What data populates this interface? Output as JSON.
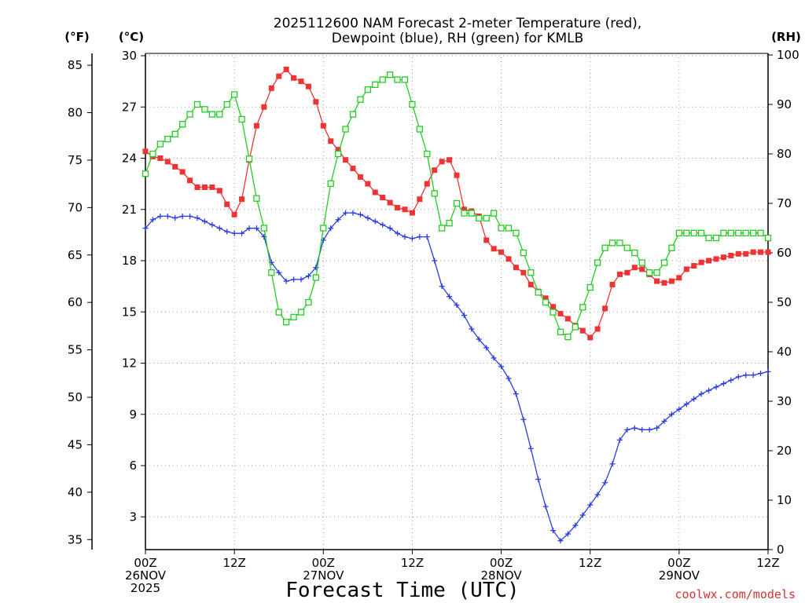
{
  "colors": {
    "temperature": "#ee3333",
    "dewpoint": "#2a3de0",
    "rh": "#22cc22",
    "grid": "#9a9a9a",
    "watermark": "#d63030"
  },
  "header": {
    "title_line1": "2025112600 NAM Forecast 2-meter Temperature (red),",
    "title_line2": "Dewpoint (blue), RH (green) for KMLB"
  },
  "axes": {
    "fahrenheit_unit": "(°F)",
    "celsius_unit": "(°C)",
    "rh_unit": "(RH)",
    "xlabel": "Forecast Time (UTC)"
  },
  "watermark": "coolwx.com/models",
  "chart_data": {
    "type": "line",
    "title": "2025112600 NAM Forecast 2-meter Temperature (red), Dewpoint (blue), RH (green) for KMLB",
    "xlabel": "Forecast Time (UTC)",
    "ylabel_left": "(°C)",
    "ylabel_far_left": "(°F)",
    "ylabel_right": "(RH)",
    "x_unit": "forecast hour",
    "xlim": [
      0,
      84
    ],
    "ylim_celsius": [
      1.5,
      30.5
    ],
    "ylim_rh": [
      0,
      100
    ],
    "x_ticks": [
      {
        "hour": 0,
        "lines": [
          "00Z",
          "26NOV",
          "2025"
        ]
      },
      {
        "hour": 12,
        "lines": [
          "12Z"
        ]
      },
      {
        "hour": 24,
        "lines": [
          "00Z",
          "27NOV"
        ]
      },
      {
        "hour": 36,
        "lines": [
          "12Z"
        ]
      },
      {
        "hour": 48,
        "lines": [
          "00Z",
          "28NOV"
        ]
      },
      {
        "hour": 60,
        "lines": [
          "12Z"
        ]
      },
      {
        "hour": 72,
        "lines": [
          "00Z",
          "29NOV"
        ]
      },
      {
        "hour": 84,
        "lines": [
          "12Z"
        ]
      }
    ],
    "celsius_ticks": [
      "3",
      "6",
      "9",
      "12",
      "15",
      "18",
      "21",
      "24",
      "27",
      "30"
    ],
    "fahrenheit_ticks": [
      "35",
      "40",
      "45",
      "50",
      "55",
      "60",
      "65",
      "70",
      "75",
      "80",
      "85"
    ],
    "rh_ticks": [
      "0",
      "10",
      "20",
      "30",
      "40",
      "50",
      "60",
      "70",
      "80",
      "90",
      "100"
    ],
    "series": [
      {
        "name": "Temperature",
        "unit": "°C",
        "color": "temperature",
        "marker": "filled-square",
        "hours": [
          0,
          1,
          2,
          3,
          4,
          5,
          6,
          7,
          8,
          9,
          10,
          11,
          12,
          13,
          14,
          15,
          16,
          17,
          18,
          19,
          20,
          21,
          22,
          23,
          24,
          25,
          26,
          27,
          28,
          29,
          30,
          31,
          32,
          33,
          34,
          35,
          36,
          37,
          38,
          39,
          40,
          41,
          42,
          43,
          44,
          45,
          46,
          47,
          48,
          49,
          50,
          51,
          52,
          53,
          54,
          55,
          56,
          57,
          58,
          59,
          60,
          61,
          62,
          63,
          64,
          65,
          66,
          67,
          68,
          69,
          70,
          71,
          72,
          73,
          74,
          75,
          76,
          77,
          78,
          79,
          80,
          81,
          82,
          83,
          84
        ],
        "values": [
          24.4,
          24.1,
          24.0,
          23.8,
          23.5,
          23.2,
          22.7,
          22.3,
          22.3,
          22.3,
          22.1,
          21.3,
          20.7,
          21.6,
          23.9,
          25.9,
          27.0,
          28.1,
          28.8,
          29.2,
          28.7,
          28.5,
          28.2,
          27.3,
          25.9,
          25.0,
          24.5,
          23.9,
          23.4,
          22.9,
          22.5,
          22.0,
          21.7,
          21.4,
          21.1,
          21.0,
          20.8,
          21.6,
          22.5,
          23.3,
          23.8,
          23.9,
          23.0,
          21.0,
          20.9,
          20.6,
          19.2,
          18.7,
          18.5,
          18.1,
          17.6,
          17.3,
          16.6,
          16.2,
          15.8,
          15.3,
          14.9,
          14.6,
          14.2,
          13.9,
          13.5,
          14.0,
          15.2,
          16.6,
          17.2,
          17.3,
          17.6,
          17.5,
          17.2,
          16.8,
          16.7,
          16.8,
          17.0,
          17.5,
          17.7,
          17.9,
          18.0,
          18.1,
          18.2,
          18.3,
          18.4,
          18.4,
          18.5,
          18.5,
          18.5
        ]
      },
      {
        "name": "Dewpoint",
        "unit": "°C",
        "color": "dewpoint",
        "marker": "plus",
        "hours": [
          0,
          1,
          2,
          3,
          4,
          5,
          6,
          7,
          8,
          9,
          10,
          11,
          12,
          13,
          14,
          15,
          16,
          17,
          18,
          19,
          20,
          21,
          22,
          23,
          24,
          25,
          26,
          27,
          28,
          29,
          30,
          31,
          32,
          33,
          34,
          35,
          36,
          37,
          38,
          39,
          40,
          41,
          42,
          43,
          44,
          45,
          46,
          47,
          48,
          49,
          50,
          51,
          52,
          53,
          54,
          55,
          56,
          57,
          58,
          59,
          60,
          61,
          62,
          63,
          64,
          65,
          66,
          67,
          68,
          69,
          70,
          71,
          72,
          73,
          74,
          75,
          76,
          77,
          78,
          79,
          80,
          81,
          82,
          83,
          84
        ],
        "values": [
          19.9,
          20.4,
          20.6,
          20.6,
          20.5,
          20.6,
          20.6,
          20.5,
          20.3,
          20.1,
          19.9,
          19.7,
          19.6,
          19.6,
          19.9,
          19.9,
          19.4,
          17.9,
          17.3,
          16.8,
          16.9,
          16.9,
          17.1,
          17.6,
          19.2,
          19.9,
          20.4,
          20.8,
          20.8,
          20.7,
          20.5,
          20.3,
          20.1,
          19.9,
          19.6,
          19.4,
          19.3,
          19.4,
          19.4,
          18.0,
          16.5,
          15.9,
          15.4,
          14.8,
          14.0,
          13.4,
          12.9,
          12.3,
          11.8,
          11.1,
          10.2,
          8.7,
          7.0,
          5.2,
          3.6,
          2.2,
          1.6,
          2.0,
          2.5,
          3.1,
          3.7,
          4.3,
          5.0,
          6.1,
          7.5,
          8.1,
          8.2,
          8.1,
          8.1,
          8.2,
          8.6,
          9.0,
          9.3,
          9.6,
          9.9,
          10.2,
          10.4,
          10.6,
          10.8,
          11.0,
          11.2,
          11.3,
          11.3,
          11.4,
          11.5
        ]
      },
      {
        "name": "RH",
        "unit": "%",
        "color": "rh",
        "marker": "open-square",
        "hours": [
          0,
          1,
          2,
          3,
          4,
          5,
          6,
          7,
          8,
          9,
          10,
          11,
          12,
          13,
          14,
          15,
          16,
          17,
          18,
          19,
          20,
          21,
          22,
          23,
          24,
          25,
          26,
          27,
          28,
          29,
          30,
          31,
          32,
          33,
          34,
          35,
          36,
          37,
          38,
          39,
          40,
          41,
          42,
          43,
          44,
          45,
          46,
          47,
          48,
          49,
          50,
          51,
          52,
          53,
          54,
          55,
          56,
          57,
          58,
          59,
          60,
          61,
          62,
          63,
          64,
          65,
          66,
          67,
          68,
          69,
          70,
          71,
          72,
          73,
          74,
          75,
          76,
          77,
          78,
          79,
          80,
          81,
          82,
          83,
          84
        ],
        "values": [
          76,
          80,
          82,
          83,
          84,
          86,
          88,
          90,
          89,
          88,
          88,
          90,
          92,
          87,
          79,
          71,
          65,
          56,
          48,
          46,
          47,
          48,
          50,
          55,
          65,
          74,
          80,
          85,
          88,
          91,
          93,
          94,
          95,
          96,
          95,
          95,
          90,
          85,
          80,
          72,
          65,
          66,
          70,
          68,
          68,
          67,
          67,
          68,
          65,
          65,
          64,
          60,
          56,
          52,
          50,
          48,
          44,
          43,
          45,
          49,
          53,
          58,
          61,
          62,
          62,
          61,
          60,
          58,
          56,
          56,
          58,
          61,
          64,
          64,
          64,
          64,
          63,
          63,
          64,
          64,
          64,
          64,
          64,
          64,
          63
        ]
      }
    ]
  }
}
